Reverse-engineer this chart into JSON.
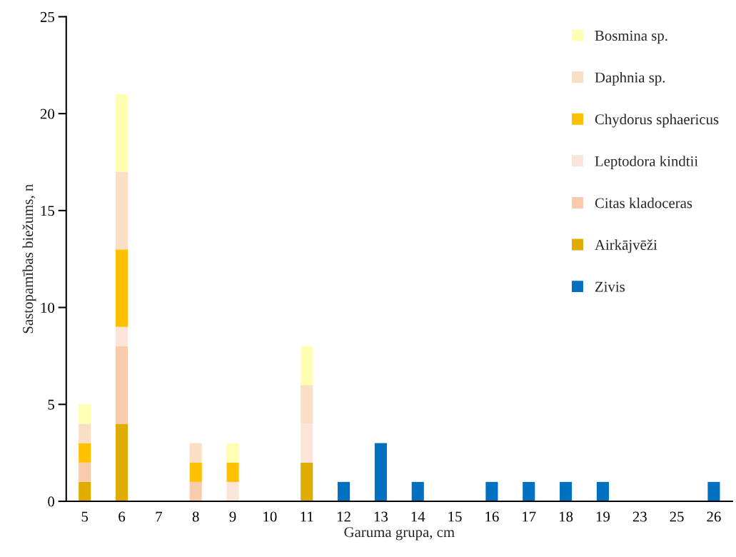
{
  "chart_data": {
    "type": "bar",
    "stacked": true,
    "xlabel": "Garuma grupa, cm",
    "ylabel": "Sastopamības biežums, n",
    "categories": [
      "5",
      "6",
      "7",
      "8",
      "9",
      "10",
      "11",
      "12",
      "13",
      "14",
      "15",
      "16",
      "17",
      "18",
      "19",
      "23",
      "25",
      "26"
    ],
    "series": [
      {
        "name": "Zivis",
        "color": "#0070c0",
        "values": [
          null,
          null,
          null,
          null,
          null,
          null,
          null,
          1,
          3,
          1,
          null,
          1,
          1,
          1,
          1,
          null,
          null,
          1
        ]
      },
      {
        "name": "Airkājvēži",
        "color": "#e0ac00",
        "values": [
          1,
          4,
          null,
          null,
          null,
          null,
          2,
          null,
          null,
          null,
          null,
          null,
          null,
          null,
          null,
          null,
          null,
          null
        ]
      },
      {
        "name": "Citas kladoceras",
        "color": "#f8cbad",
        "values": [
          1,
          4,
          null,
          1,
          null,
          null,
          null,
          null,
          null,
          null,
          null,
          null,
          null,
          null,
          null,
          null,
          null,
          null
        ]
      },
      {
        "name": "Leptodora kindtii",
        "color": "#fae5d8",
        "values": [
          null,
          1,
          null,
          null,
          1,
          null,
          2,
          null,
          null,
          null,
          null,
          null,
          null,
          null,
          null,
          null,
          null,
          null
        ]
      },
      {
        "name": "Chydorus sphaericus",
        "color": "#ffc000",
        "values": [
          1,
          4,
          null,
          1,
          1,
          null,
          null,
          null,
          null,
          null,
          null,
          null,
          null,
          null,
          null,
          null,
          null,
          null
        ]
      },
      {
        "name": "Daphnia sp.",
        "color": "#f9dfc3",
        "values": [
          1,
          4,
          null,
          1,
          null,
          null,
          2,
          null,
          null,
          null,
          null,
          null,
          null,
          null,
          null,
          null,
          null,
          null
        ]
      },
      {
        "name": "Bosmina sp.",
        "color": "#ffffb3",
        "values": [
          1,
          4,
          null,
          null,
          1,
          null,
          2,
          null,
          null,
          null,
          null,
          null,
          null,
          null,
          null,
          null,
          null,
          null
        ]
      }
    ],
    "ylim": [
      0,
      25
    ],
    "yticks": [
      0,
      5,
      10,
      15,
      20,
      25
    ],
    "grid": false,
    "legend": "top right"
  }
}
